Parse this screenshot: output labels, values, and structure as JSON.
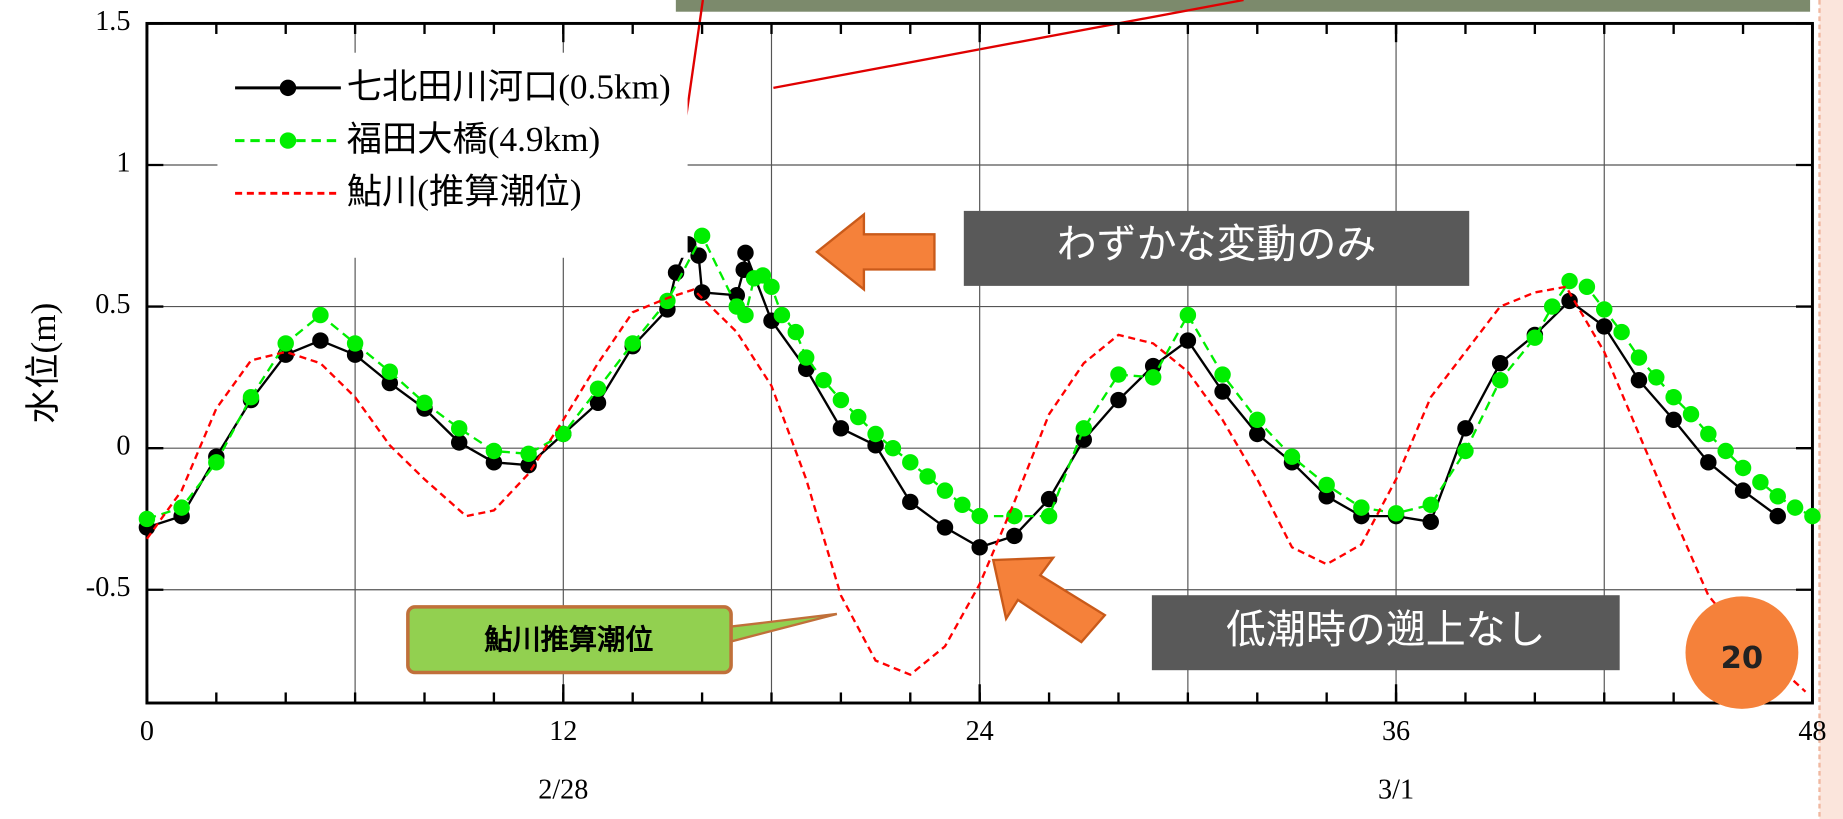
{
  "chart_data": {
    "type": "line",
    "y_label": "水位(m)",
    "xlim": [
      0,
      48
    ],
    "xticks": [
      0,
      12,
      24,
      36,
      48
    ],
    "x_grid_step": 6,
    "x_minor_tick_step": 2,
    "ylim": [
      -0.9,
      1.5
    ],
    "yticks": [
      1.5,
      1,
      0.5,
      0,
      -0.5
    ],
    "grid": true,
    "legend": "upper left",
    "date_labels": [
      {
        "text": "2/28",
        "x": 12
      },
      {
        "text": "3/1",
        "x": 36
      }
    ],
    "series": [
      {
        "name": "七北田川河口(0.5km)",
        "color": "#000000",
        "marker": "circle",
        "dashed": false,
        "x": [
          0,
          1,
          2,
          3,
          4,
          5,
          6,
          7,
          8,
          9,
          10,
          11,
          12,
          13,
          14,
          15,
          15.25,
          15.6,
          15.9,
          16,
          17,
          17.2,
          17.25,
          18,
          19,
          20,
          21,
          22,
          23,
          24,
          25,
          26,
          27,
          28,
          29,
          30,
          31,
          32,
          33,
          34,
          35,
          36,
          37,
          38,
          39,
          40,
          41,
          42,
          43,
          44,
          45,
          46,
          47
        ],
        "values": [
          -0.28,
          -0.24,
          -0.03,
          0.17,
          0.33,
          0.38,
          0.33,
          0.23,
          0.14,
          0.02,
          -0.05,
          -0.06,
          0.05,
          0.16,
          0.36,
          0.49,
          0.62,
          0.72,
          0.68,
          0.55,
          0.54,
          0.63,
          0.69,
          0.45,
          0.28,
          0.07,
          0.01,
          -0.19,
          -0.28,
          -0.35,
          -0.31,
          -0.18,
          0.03,
          0.17,
          0.29,
          0.38,
          0.2,
          0.05,
          -0.05,
          -0.17,
          -0.24,
          -0.24,
          -0.26,
          0.07,
          0.3,
          0.4,
          0.52,
          0.43,
          0.24,
          0.1,
          -0.05,
          -0.15,
          -0.24
        ]
      },
      {
        "name": "福田大橋(4.9km)",
        "color": "#00ee00",
        "marker": "circle",
        "dashed": true,
        "x": [
          0,
          1,
          2,
          3,
          4,
          5,
          6,
          7,
          8,
          9,
          10,
          11,
          12,
          13,
          14,
          15,
          16,
          17,
          17.25,
          17.5,
          17.75,
          18,
          18.3,
          18.7,
          19,
          19.5,
          20,
          20.5,
          21,
          21.5,
          22,
          22.5,
          23,
          23.5,
          24,
          25,
          26,
          27,
          28,
          29,
          30,
          31,
          32,
          33,
          34,
          35,
          36,
          37,
          38,
          39,
          40,
          40.5,
          41,
          41.5,
          42,
          42.5,
          43,
          43.5,
          44,
          44.5,
          45,
          45.5,
          46,
          46.5,
          47,
          47.5,
          48
        ],
        "values": [
          -0.25,
          -0.21,
          -0.05,
          0.18,
          0.37,
          0.47,
          0.37,
          0.27,
          0.16,
          0.07,
          -0.01,
          -0.02,
          0.05,
          0.21,
          0.37,
          0.52,
          0.75,
          0.5,
          0.47,
          0.6,
          0.61,
          0.57,
          0.47,
          0.41,
          0.32,
          0.24,
          0.17,
          0.11,
          0.05,
          0,
          -0.05,
          -0.1,
          -0.15,
          -0.2,
          -0.24,
          -0.24,
          -0.24,
          0.07,
          0.26,
          0.25,
          0.47,
          0.26,
          0.1,
          -0.03,
          -0.13,
          -0.21,
          -0.23,
          -0.2,
          -0.01,
          0.24,
          0.39,
          0.5,
          0.59,
          0.57,
          0.49,
          0.41,
          0.32,
          0.25,
          0.18,
          0.12,
          0.05,
          -0.01,
          -0.07,
          -0.12,
          -0.17,
          -0.21,
          -0.24
        ]
      },
      {
        "name": "鮎川(推算潮位)",
        "color": "#ff0000",
        "marker": "none",
        "dashed": true,
        "x": [
          0,
          1,
          2,
          3,
          4,
          5,
          6,
          7,
          8,
          9.2,
          10,
          11,
          12,
          13,
          14,
          15,
          15.75,
          17,
          18,
          19,
          20,
          21,
          22,
          23,
          24,
          25,
          26,
          27,
          28,
          29,
          30,
          31,
          32,
          33,
          34,
          35,
          36,
          37,
          38,
          39,
          40,
          40.9,
          42,
          43,
          44,
          45,
          46,
          47,
          47.8
        ],
        "values": [
          -0.32,
          -0.15,
          0.14,
          0.31,
          0.34,
          0.3,
          0.18,
          0.01,
          -0.11,
          -0.24,
          -0.22,
          -0.09,
          0.1,
          0.3,
          0.48,
          0.53,
          0.56,
          0.41,
          0.22,
          -0.11,
          -0.52,
          -0.75,
          -0.8,
          -0.7,
          -0.48,
          -0.19,
          0.12,
          0.3,
          0.4,
          0.37,
          0.27,
          0.1,
          -0.11,
          -0.35,
          -0.41,
          -0.34,
          -0.11,
          0.18,
          0.34,
          0.5,
          0.55,
          0.57,
          0.34,
          0.05,
          -0.24,
          -0.52,
          -0.67,
          -0.77,
          -0.86
        ]
      }
    ],
    "annotations": [
      {
        "text": "わずかな変動のみ"
      },
      {
        "text": "低潮時の遡上なし"
      },
      {
        "text": "鮎川推算潮位"
      }
    ]
  },
  "page_number": "20"
}
